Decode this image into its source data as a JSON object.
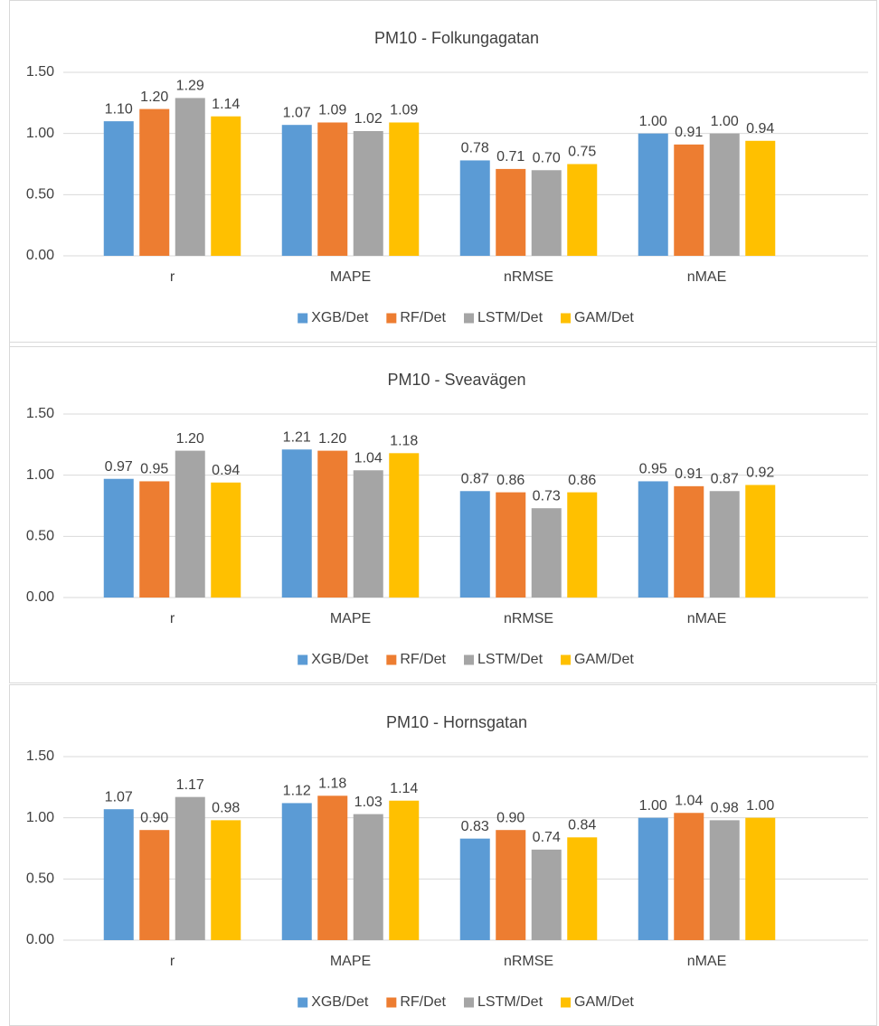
{
  "chart_data": [
    {
      "type": "bar",
      "title": "PM10 - Folkungagatan",
      "categories": [
        "r",
        "MAPE",
        "nRMSE",
        "nMAE"
      ],
      "series": [
        {
          "name": "XGB/Det",
          "color": "#5b9bd5",
          "values": [
            1.1,
            1.07,
            0.78,
            1.0
          ],
          "value_labels": [
            "1.10",
            "1.07",
            "0.78",
            "1.00"
          ]
        },
        {
          "name": "RF/Det",
          "color": "#ed7d31",
          "values": [
            1.2,
            1.09,
            0.71,
            0.91
          ],
          "value_labels": [
            "1.20",
            "1.09",
            "0.71",
            "0.91"
          ]
        },
        {
          "name": "LSTM/Det",
          "color": "#a5a5a5",
          "values": [
            1.29,
            1.02,
            0.7,
            1.0
          ],
          "value_labels": [
            "1.29",
            "1.02",
            "0.70",
            "1.00"
          ]
        },
        {
          "name": "GAM/Det",
          "color": "#ffc000",
          "values": [
            1.14,
            1.09,
            0.75,
            0.94
          ],
          "value_labels": [
            "1.14",
            "1.09",
            "0.75",
            "0.94"
          ]
        }
      ],
      "ylim": [
        0,
        1.5
      ],
      "yticks": [
        {
          "value": 0,
          "label": "0.00"
        },
        {
          "value": 0.5,
          "label": "0.50"
        },
        {
          "value": 1,
          "label": "1.00"
        },
        {
          "value": 1.5,
          "label": "1.50"
        }
      ],
      "grid": true,
      "legend": "bottom"
    },
    {
      "type": "bar",
      "title": "PM10 - Sveavägen",
      "categories": [
        "r",
        "MAPE",
        "nRMSE",
        "nMAE"
      ],
      "series": [
        {
          "name": "XGB/Det",
          "color": "#5b9bd5",
          "values": [
            0.97,
            1.21,
            0.87,
            0.95
          ],
          "value_labels": [
            "0.97",
            "1.21",
            "0.87",
            "0.95"
          ]
        },
        {
          "name": "RF/Det",
          "color": "#ed7d31",
          "values": [
            0.95,
            1.2,
            0.86,
            0.91
          ],
          "value_labels": [
            "0.95",
            "1.20",
            "0.86",
            "0.91"
          ]
        },
        {
          "name": "LSTM/Det",
          "color": "#a5a5a5",
          "values": [
            1.2,
            1.04,
            0.73,
            0.87
          ],
          "value_labels": [
            "1.20",
            "1.04",
            "0.73",
            "0.87"
          ]
        },
        {
          "name": "GAM/Det",
          "color": "#ffc000",
          "values": [
            0.94,
            1.18,
            0.86,
            0.92
          ],
          "value_labels": [
            "0.94",
            "1.18",
            "0.86",
            "0.92"
          ]
        }
      ],
      "ylim": [
        0,
        1.5
      ],
      "yticks": [
        {
          "value": 0,
          "label": "0.00"
        },
        {
          "value": 0.5,
          "label": "0.50"
        },
        {
          "value": 1,
          "label": "1.00"
        },
        {
          "value": 1.5,
          "label": "1.50"
        }
      ],
      "grid": true,
      "legend": "bottom"
    },
    {
      "type": "bar",
      "title": "PM10 - Hornsgatan",
      "categories": [
        "r",
        "MAPE",
        "nRMSE",
        "nMAE"
      ],
      "series": [
        {
          "name": "XGB/Det",
          "color": "#5b9bd5",
          "values": [
            1.07,
            1.12,
            0.83,
            1.0
          ],
          "value_labels": [
            "1.07",
            "1.12",
            "0.83",
            "1.00"
          ]
        },
        {
          "name": "RF/Det",
          "color": "#ed7d31",
          "values": [
            0.9,
            1.18,
            0.9,
            1.04
          ],
          "value_labels": [
            "0.90",
            "1.18",
            "0.90",
            "1.04"
          ]
        },
        {
          "name": "LSTM/Det",
          "color": "#a5a5a5",
          "values": [
            1.17,
            1.03,
            0.74,
            0.98
          ],
          "value_labels": [
            "1.17",
            "1.03",
            "0.74",
            "0.98"
          ]
        },
        {
          "name": "GAM/Det",
          "color": "#ffc000",
          "values": [
            0.98,
            1.14,
            0.84,
            1.0
          ],
          "value_labels": [
            "0.98",
            "1.14",
            "0.84",
            "1.00"
          ]
        }
      ],
      "ylim": [
        0,
        1.5
      ],
      "yticks": [
        {
          "value": 0,
          "label": "0.00"
        },
        {
          "value": 0.5,
          "label": "0.50"
        },
        {
          "value": 1,
          "label": "1.00"
        },
        {
          "value": 1.5,
          "label": "1.50"
        }
      ],
      "grid": true,
      "legend": "bottom"
    }
  ]
}
